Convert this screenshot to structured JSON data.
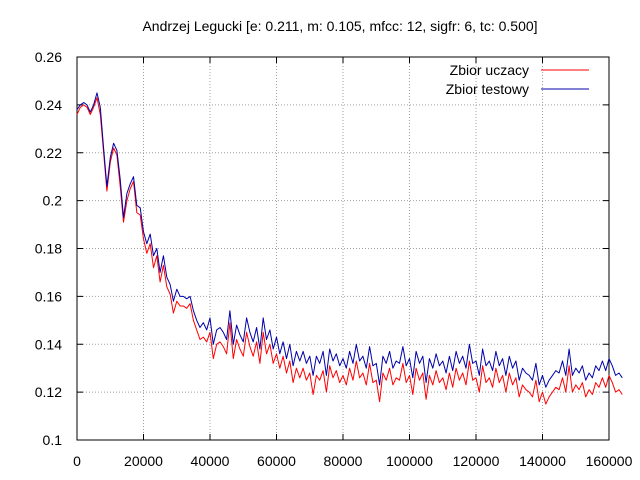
{
  "chart_data": {
    "type": "line",
    "title": "Andrzej Legucki [e: 0.211, m: 0.105, mfcc: 12, sigfr: 6, tc: 0.500]",
    "xlabel": "",
    "ylabel": "",
    "xlim": [
      0,
      160000
    ],
    "ylim": [
      0.1,
      0.26
    ],
    "grid": true,
    "legend_position": "top-right",
    "x_ticks": [
      0,
      20000,
      40000,
      60000,
      80000,
      100000,
      120000,
      140000,
      160000
    ],
    "x_tick_labels": [
      "0",
      "20000",
      "40000",
      "60000",
      "80000",
      "100000",
      "120000",
      "140000",
      "160000"
    ],
    "y_ticks": [
      0.1,
      0.12,
      0.14,
      0.16,
      0.18,
      0.2,
      0.22,
      0.24,
      0.26
    ],
    "y_tick_labels": [
      "0.1",
      "0.12",
      "0.14",
      "0.16",
      "0.18",
      "0.2",
      "0.22",
      "0.24",
      "0.26"
    ],
    "x_step": 1000,
    "series": [
      {
        "name": "Zbior uczacy",
        "color": "#ff0000",
        "values": [
          0.236,
          0.239,
          0.24,
          0.239,
          0.236,
          0.239,
          0.243,
          0.236,
          0.22,
          0.204,
          0.216,
          0.222,
          0.219,
          0.206,
          0.191,
          0.2,
          0.205,
          0.208,
          0.195,
          0.194,
          0.184,
          0.178,
          0.182,
          0.172,
          0.177,
          0.166,
          0.173,
          0.164,
          0.161,
          0.153,
          0.158,
          0.156,
          0.156,
          0.155,
          0.157,
          0.15,
          0.146,
          0.142,
          0.143,
          0.141,
          0.145,
          0.134,
          0.14,
          0.141,
          0.139,
          0.136,
          0.149,
          0.134,
          0.142,
          0.138,
          0.135,
          0.145,
          0.139,
          0.135,
          0.141,
          0.132,
          0.145,
          0.136,
          0.14,
          0.132,
          0.136,
          0.13,
          0.135,
          0.128,
          0.133,
          0.124,
          0.13,
          0.126,
          0.13,
          0.125,
          0.128,
          0.119,
          0.127,
          0.125,
          0.129,
          0.12,
          0.131,
          0.126,
          0.129,
          0.124,
          0.127,
          0.123,
          0.13,
          0.125,
          0.133,
          0.126,
          0.128,
          0.123,
          0.132,
          0.124,
          0.125,
          0.116,
          0.128,
          0.125,
          0.13,
          0.123,
          0.126,
          0.125,
          0.132,
          0.124,
          0.127,
          0.119,
          0.13,
          0.125,
          0.128,
          0.117,
          0.127,
          0.123,
          0.129,
          0.124,
          0.126,
          0.121,
          0.128,
          0.122,
          0.13,
          0.125,
          0.128,
          0.123,
          0.133,
          0.125,
          0.126,
          0.12,
          0.131,
          0.124,
          0.126,
          0.122,
          0.13,
          0.124,
          0.127,
          0.12,
          0.128,
          0.123,
          0.126,
          0.118,
          0.123,
          0.121,
          0.12,
          0.118,
          0.125,
          0.116,
          0.12,
          0.115,
          0.118,
          0.12,
          0.122,
          0.121,
          0.126,
          0.12,
          0.131,
          0.12,
          0.123,
          0.121,
          0.124,
          0.118,
          0.121,
          0.119,
          0.124,
          0.122,
          0.126,
          0.122,
          0.127,
          0.124,
          0.12,
          0.121,
          0.119
        ]
      },
      {
        "name": "Zbior testowy",
        "color": "#0000aa",
        "values": [
          0.238,
          0.24,
          0.241,
          0.24,
          0.237,
          0.24,
          0.245,
          0.239,
          0.222,
          0.206,
          0.218,
          0.224,
          0.221,
          0.209,
          0.193,
          0.203,
          0.207,
          0.21,
          0.198,
          0.197,
          0.187,
          0.182,
          0.186,
          0.177,
          0.18,
          0.17,
          0.177,
          0.168,
          0.165,
          0.158,
          0.163,
          0.16,
          0.16,
          0.159,
          0.16,
          0.154,
          0.15,
          0.147,
          0.149,
          0.146,
          0.151,
          0.14,
          0.146,
          0.147,
          0.145,
          0.142,
          0.154,
          0.14,
          0.148,
          0.144,
          0.141,
          0.151,
          0.145,
          0.141,
          0.147,
          0.138,
          0.151,
          0.142,
          0.146,
          0.138,
          0.143,
          0.136,
          0.141,
          0.134,
          0.14,
          0.131,
          0.137,
          0.133,
          0.137,
          0.132,
          0.135,
          0.127,
          0.135,
          0.132,
          0.137,
          0.127,
          0.138,
          0.133,
          0.136,
          0.131,
          0.134,
          0.13,
          0.137,
          0.132,
          0.14,
          0.133,
          0.135,
          0.13,
          0.139,
          0.131,
          0.132,
          0.123,
          0.135,
          0.132,
          0.137,
          0.13,
          0.133,
          0.132,
          0.139,
          0.131,
          0.134,
          0.126,
          0.137,
          0.132,
          0.135,
          0.124,
          0.134,
          0.13,
          0.136,
          0.131,
          0.133,
          0.128,
          0.135,
          0.129,
          0.137,
          0.132,
          0.135,
          0.13,
          0.14,
          0.132,
          0.133,
          0.127,
          0.138,
          0.131,
          0.133,
          0.129,
          0.137,
          0.131,
          0.134,
          0.127,
          0.135,
          0.13,
          0.133,
          0.125,
          0.13,
          0.128,
          0.127,
          0.125,
          0.132,
          0.123,
          0.127,
          0.122,
          0.125,
          0.127,
          0.129,
          0.128,
          0.133,
          0.127,
          0.138,
          0.127,
          0.13,
          0.128,
          0.131,
          0.125,
          0.128,
          0.126,
          0.131,
          0.129,
          0.133,
          0.129,
          0.134,
          0.131,
          0.127,
          0.128,
          0.126
        ]
      }
    ]
  }
}
